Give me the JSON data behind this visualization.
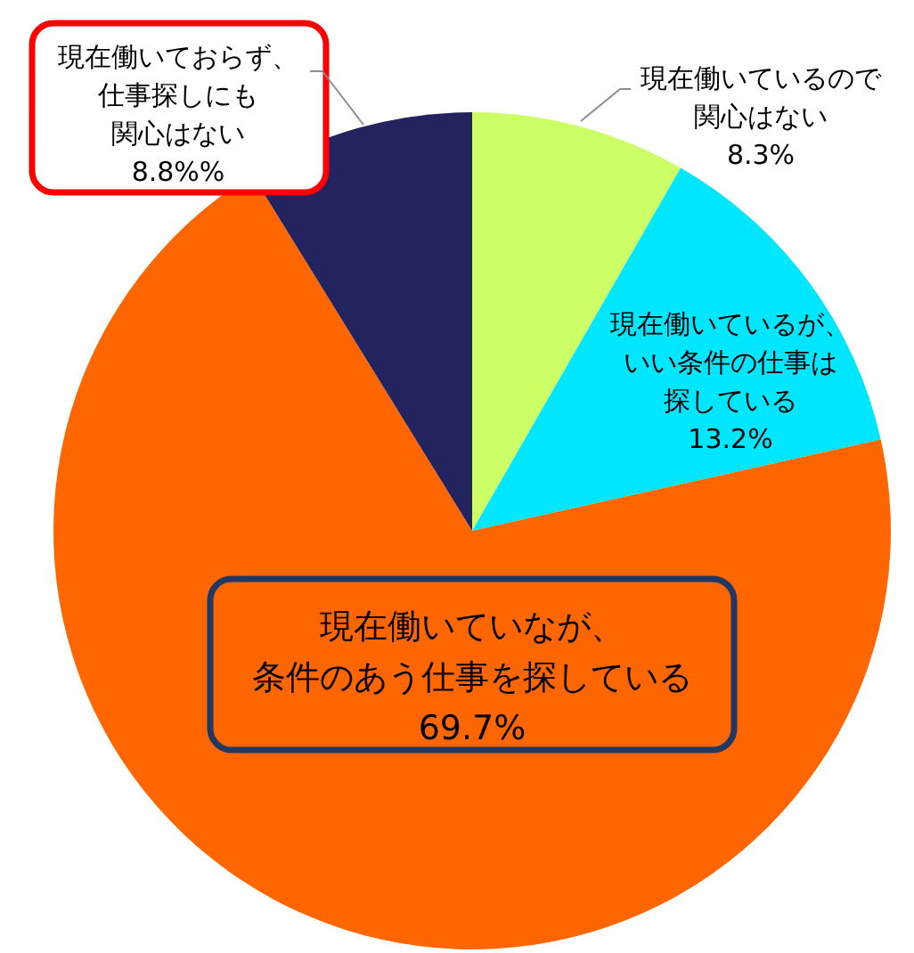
{
  "chart_data": {
    "type": "pie",
    "categories": [
      "現在働いているので関心はない",
      "現在働いているが、いい条件の仕事は探している",
      "現在働いていなが、条件のあう仕事を探している",
      "現在働いておらず、仕事探しにも関心はない"
    ],
    "values": [
      8.3,
      13.2,
      69.7,
      8.8
    ],
    "colors": [
      "#ccff66",
      "#00e6ff",
      "#ff6600",
      "#23235f"
    ],
    "value_labels": [
      "8.3%",
      "13.2%",
      "69.7%",
      "8.8%%"
    ]
  }
}
